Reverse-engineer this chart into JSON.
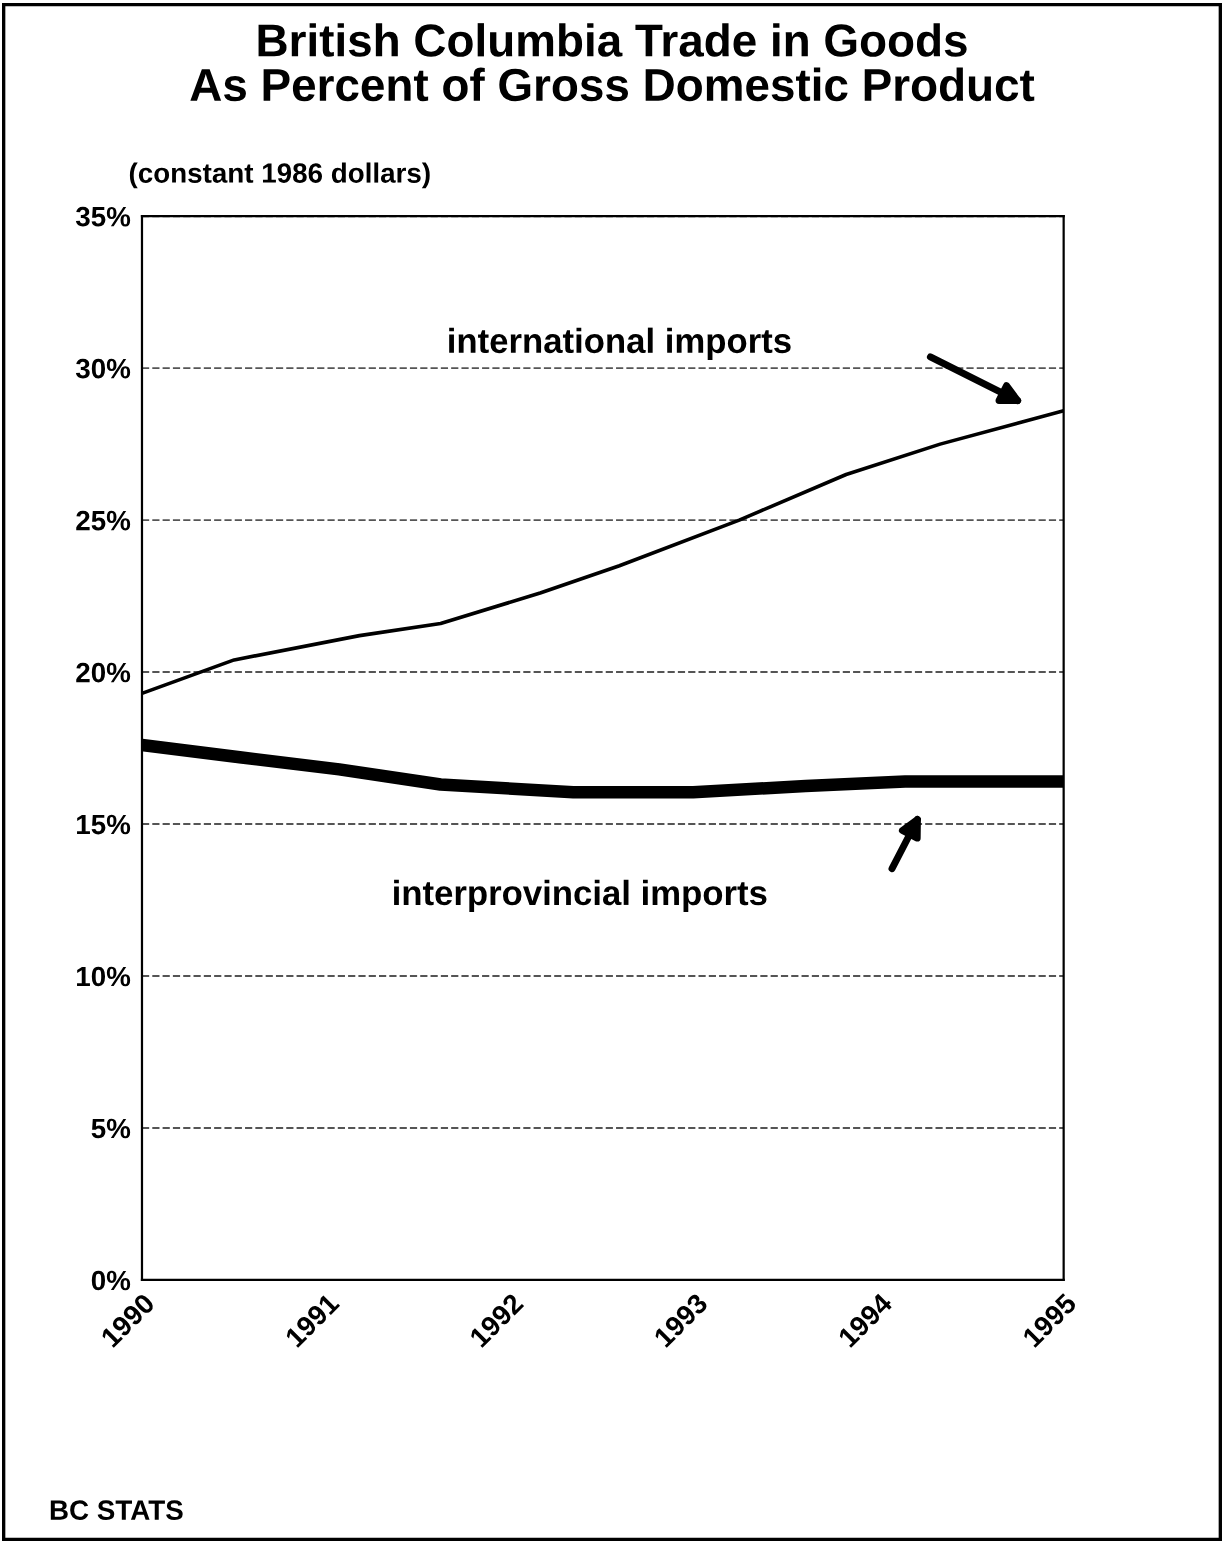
{
  "chart_data": {
    "type": "line",
    "title": "British Columbia Trade in Goods\nAs Percent of Gross Domestic Product",
    "subtitle": "(constant 1986 dollars)",
    "series": [
      {
        "color": "#000000",
        "x": [
          1990,
          1990.5,
          1991.18,
          1991.62,
          1992.16,
          1992.59,
          1993.24,
          1993.82,
          1994.33,
          1995
        ],
        "values": [
          19.3,
          20.4,
          21.2,
          21.6,
          22.6,
          23.5,
          25.0,
          26.5,
          27.5,
          28.6
        ]
      },
      {
        "color": "#000000",
        "x": [
          1990,
          1990.53,
          1991.07,
          1991.62,
          1992.34,
          1992.99,
          1993.6,
          1994.14,
          1995
        ],
        "values": [
          17.6,
          17.2,
          16.8,
          16.3,
          16.05,
          16.05,
          16.25,
          16.4,
          16.4
        ]
      }
    ],
    "xlim": [
      1990,
      1995
    ],
    "xticks": [
      1990,
      1991,
      1992,
      1993,
      1994,
      1995
    ],
    "ylim": [
      0,
      35
    ],
    "yticks": [
      {
        "value": 0,
        "label": "0%"
      },
      {
        "value": 5,
        "label": "5%"
      },
      {
        "value": 10,
        "label": "10%"
      },
      {
        "value": 15,
        "label": "15%"
      },
      {
        "value": 20,
        "label": "20%"
      },
      {
        "value": 25,
        "label": "25%"
      },
      {
        "value": 30,
        "label": "30%"
      },
      {
        "value": 35,
        "label": "35%"
      }
    ],
    "grid": "y",
    "legend": false,
    "marker": "none",
    "line_style": "solid",
    "annotations": [
      "international imports",
      "interprovincial imports",
      "BC STATS"
    ]
  }
}
